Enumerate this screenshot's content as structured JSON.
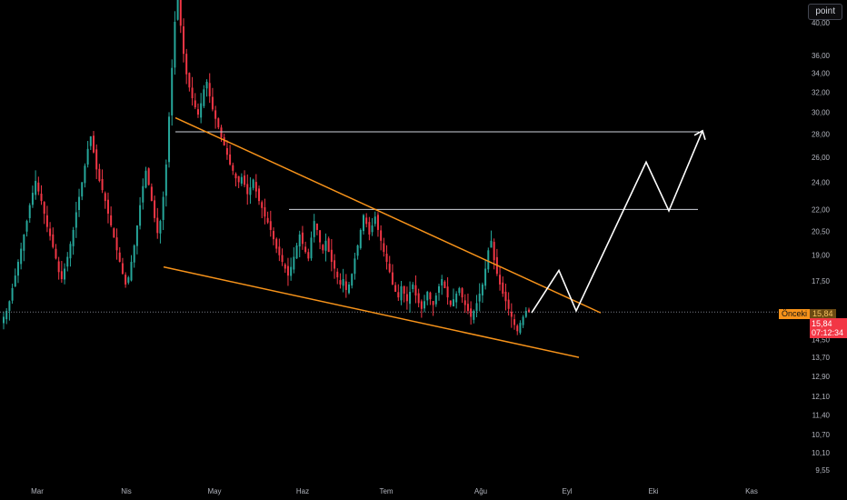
{
  "toolbar": {
    "scale_label": "point"
  },
  "price_axis": {
    "ticks": [
      {
        "label": "40,00",
        "value": 40.0
      },
      {
        "label": "36,00",
        "value": 36.0
      },
      {
        "label": "34,00",
        "value": 34.0
      },
      {
        "label": "32,00",
        "value": 32.0
      },
      {
        "label": "30,00",
        "value": 30.0
      },
      {
        "label": "28,00",
        "value": 28.0
      },
      {
        "label": "26,00",
        "value": 26.0
      },
      {
        "label": "24,00",
        "value": 24.0
      },
      {
        "label": "22,00",
        "value": 22.0
      },
      {
        "label": "20,50",
        "value": 20.5
      },
      {
        "label": "19,00",
        "value": 19.0
      },
      {
        "label": "17,50",
        "value": 17.5
      },
      {
        "label": "14,50",
        "value": 14.5
      },
      {
        "label": "13,70",
        "value": 13.7
      },
      {
        "label": "12,90",
        "value": 12.9
      },
      {
        "label": "12,10",
        "value": 12.1
      },
      {
        "label": "11,40",
        "value": 11.4
      },
      {
        "label": "10,70",
        "value": 10.7
      },
      {
        "label": "10,10",
        "value": 10.1
      },
      {
        "label": "9,55",
        "value": 9.55
      }
    ]
  },
  "time_axis": {
    "ticks": [
      "Mar",
      "Nis",
      "May",
      "Haz",
      "Tem",
      "Ağu",
      "Eyl",
      "Eki",
      "Kas"
    ]
  },
  "tags": {
    "previous_label": "Önceki",
    "previous_value": "15,84",
    "current_price": "15,84",
    "countdown": "07:12:34"
  },
  "colors": {
    "up": "#26a69a",
    "down": "#f23645",
    "trendline": "#f7931a",
    "projection": "#ffffff",
    "background": "#000000"
  },
  "chart_data": {
    "type": "candlestick",
    "scale": "log",
    "x": [
      "Mar",
      "Nis",
      "May",
      "Haz",
      "Tem",
      "Ağu",
      "Eyl",
      "Eki",
      "Kas"
    ],
    "ylim": [
      9.2,
      43
    ],
    "close_series": [
      15.6,
      15.9,
      16.4,
      17.1,
      17.8,
      18.6,
      19.4,
      20.3,
      21.2,
      22.3,
      23.2,
      24.1,
      23.3,
      22.6,
      21.7,
      20.8,
      20.2,
      19.5,
      18.8,
      18.0,
      17.6,
      18.2,
      18.9,
      19.7,
      20.6,
      21.8,
      22.9,
      24.0,
      25.3,
      26.7,
      27.8,
      26.4,
      25.0,
      24.1,
      23.4,
      22.6,
      21.7,
      20.9,
      20.1,
      19.3,
      18.6,
      17.9,
      17.3,
      17.7,
      18.6,
      19.6,
      20.9,
      22.3,
      23.7,
      24.9,
      23.8,
      22.6,
      21.4,
      20.4,
      21.2,
      22.9,
      25.4,
      29.6,
      34.6,
      40.1,
      43.0,
      39.6,
      36.2,
      33.9,
      32.5,
      31.4,
      30.5,
      29.8,
      30.9,
      32.3,
      33.1,
      31.6,
      30.3,
      29.4,
      28.6,
      27.7,
      27.0,
      26.2,
      25.4,
      24.9,
      24.3,
      24.0,
      24.4,
      23.8,
      23.1,
      23.6,
      24.2,
      23.3,
      22.6,
      22.1,
      21.5,
      21.1,
      20.6,
      20.0,
      19.4,
      19.0,
      18.6,
      18.2,
      17.8,
      18.3,
      18.9,
      19.6,
      20.3,
      19.7,
      19.2,
      18.8,
      20.1,
      21.2,
      20.6,
      19.8,
      19.3,
      19.9,
      19.2,
      18.6,
      18.2,
      17.7,
      17.3,
      17.6,
      17.0,
      17.3,
      17.9,
      18.8,
      19.6,
      20.6,
      21.6,
      21.0,
      20.3,
      20.9,
      21.5,
      20.6,
      19.9,
      19.2,
      18.6,
      18.0,
      17.3,
      16.9,
      16.6,
      17.2,
      16.8,
      16.4,
      16.9,
      17.3,
      16.7,
      16.3,
      16.0,
      16.4,
      16.9,
      16.5,
      16.2,
      16.7,
      17.2,
      17.6,
      17.1,
      16.6,
      16.2,
      16.5,
      16.8,
      17.1,
      16.6,
      16.2,
      15.9,
      15.6,
      15.9,
      16.3,
      16.8,
      17.3,
      18.2,
      19.3,
      19.9,
      18.7,
      17.9,
      17.3,
      16.8,
      16.4,
      16.0,
      15.6,
      15.2,
      14.9,
      15.3,
      15.6,
      15.9,
      15.84
    ],
    "trendlines": [
      {
        "from": [
          "Nis",
          29.5
        ],
        "to": [
          "Eyl",
          15.8
        ]
      },
      {
        "from": [
          "Nis",
          18.3
        ],
        "to": [
          "Eyl",
          13.7
        ]
      }
    ],
    "horizontal_lines": [
      28.2,
      22.0
    ],
    "projection_path": [
      15.8,
      18.1,
      15.9,
      25.6,
      21.9,
      28.3
    ],
    "previous_close": 15.84,
    "last": 15.84
  }
}
